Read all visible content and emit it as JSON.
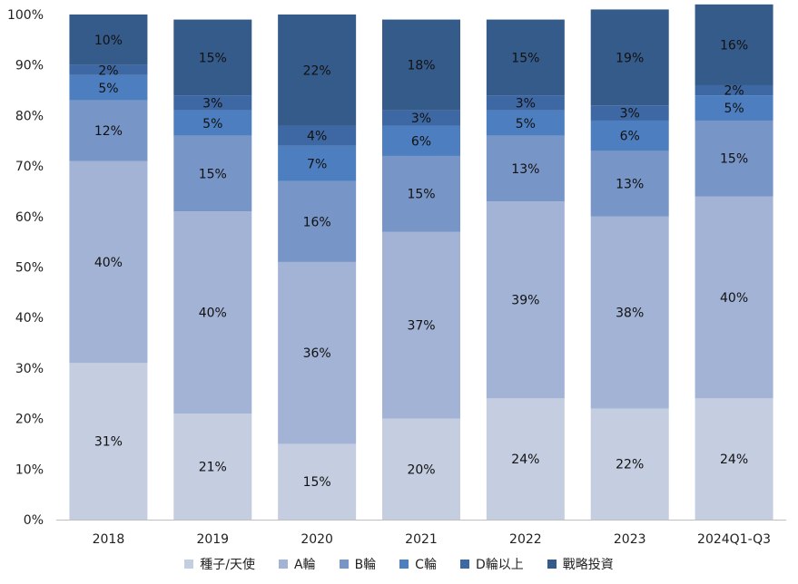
{
  "chart_data": {
    "type": "bar",
    "stacked": true,
    "percent": true,
    "title": "",
    "xlabel": "",
    "ylabel": "",
    "categories": [
      "2018",
      "2019",
      "2020",
      "2021",
      "2022",
      "2023",
      "2024Q1-Q3"
    ],
    "ylim": [
      0,
      100
    ],
    "yticks": [
      "0%",
      "10%",
      "20%",
      "30%",
      "40%",
      "50%",
      "60%",
      "70%",
      "80%",
      "90%",
      "100%"
    ],
    "grid": false,
    "legend_position": "bottom",
    "series": [
      {
        "name": "種子/天使",
        "color": "#c5cde1",
        "values": [
          31,
          21,
          15,
          20,
          24,
          22,
          24
        ]
      },
      {
        "name": "A輪",
        "color": "#a3b3d5",
        "values": [
          40,
          40,
          36,
          37,
          39,
          38,
          40
        ]
      },
      {
        "name": "B輪",
        "color": "#7795c6",
        "values": [
          12,
          15,
          16,
          15,
          13,
          13,
          15
        ]
      },
      {
        "name": "C輪",
        "color": "#4d7fc0",
        "values": [
          5,
          5,
          7,
          6,
          5,
          6,
          5
        ]
      },
      {
        "name": "D輪以上",
        "color": "#3e68a3",
        "values": [
          2,
          3,
          4,
          3,
          3,
          3,
          2
        ]
      },
      {
        "name": "戰略投資",
        "color": "#355b8b",
        "values": [
          10,
          15,
          22,
          18,
          15,
          19,
          16
        ]
      }
    ]
  }
}
